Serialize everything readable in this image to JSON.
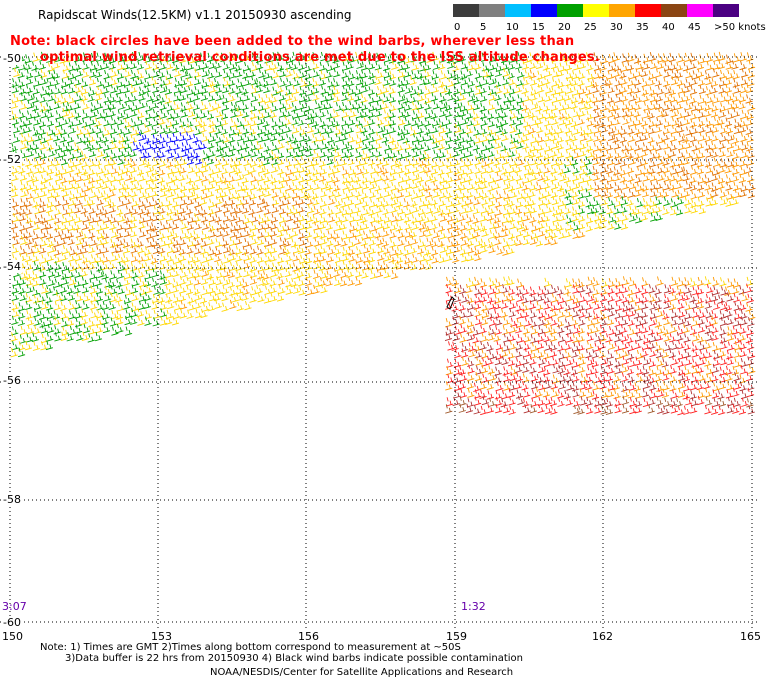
{
  "title": "Rapidscat Winds(12.5KM) v1.1 20150930 ascending",
  "note_line1": "Note: black circles have been added to the wind barbs, wherever less than",
  "note_line2": "optimal wind retrieval conditions are met due to the ISS altitude changes.",
  "legend": {
    "labels": [
      "0",
      "5",
      "10",
      "15",
      "20",
      "25",
      "30",
      "35",
      "40",
      "45",
      ">50 knots"
    ],
    "colors": [
      "#3c3c3c",
      "#7f7f7f",
      "#00bfff",
      "#0000ff",
      "#00a000",
      "#ffff00",
      "#ffa500",
      "#ff0000",
      "#8b4513",
      "#ff00ff",
      "#4b0082"
    ]
  },
  "lat_labels": [
    "-50",
    "-52",
    "-54",
    "-56",
    "-58",
    "-60"
  ],
  "lon_labels": [
    "150",
    "153",
    "156",
    "159",
    "162",
    "165"
  ],
  "times": [
    "3:07",
    "1:32"
  ],
  "footer": {
    "line1": "Note: 1) Times are GMT 2)Times along bottom correspond to measurement at ~50S",
    "line2": "3)Data buffer is 22 hrs from 20150930 4) Black wind barbs indicate possible contamination",
    "line3": "NOAA/NESDIS/Center for Satellite Applications and Research"
  },
  "map_data": {
    "lon_range": [
      150,
      165
    ],
    "lat_range": [
      -60,
      -50
    ],
    "grid": true
  }
}
